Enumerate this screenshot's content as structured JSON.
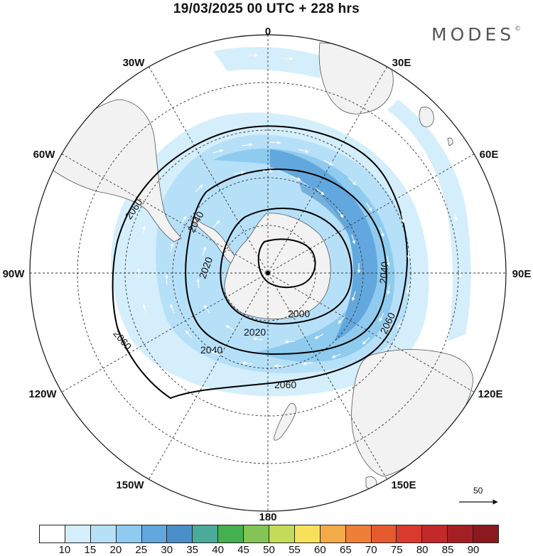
{
  "title": "19/03/2025  00 UTC  + 228 hrs",
  "brand": "MODES",
  "brand_mark": "©",
  "map": {
    "projection": "south-polar-stereographic",
    "longitude_labels": [
      {
        "name": "lon-0",
        "text": "0",
        "lon": 0
      },
      {
        "name": "lon-30e",
        "text": "30E",
        "lon": 30
      },
      {
        "name": "lon-60e",
        "text": "60E",
        "lon": 60
      },
      {
        "name": "lon-90e",
        "text": "90E",
        "lon": 90
      },
      {
        "name": "lon-120e",
        "text": "120E",
        "lon": 120
      },
      {
        "name": "lon-150e",
        "text": "150E",
        "lon": 150
      },
      {
        "name": "lon-180",
        "text": "180",
        "lon": 180
      },
      {
        "name": "lon-150w",
        "text": "150W",
        "lon": -150
      },
      {
        "name": "lon-120w",
        "text": "120W",
        "lon": -120
      },
      {
        "name": "lon-90w",
        "text": "90W",
        "lon": -90
      },
      {
        "name": "lon-60w",
        "text": "60W",
        "lon": -60
      },
      {
        "name": "lon-30w",
        "text": "30W",
        "lon": -30
      }
    ],
    "contour_labels": [
      {
        "name": "contour-label-2060-a",
        "text": "2060"
      },
      {
        "name": "contour-label-2040-a",
        "text": "2040"
      },
      {
        "name": "contour-label-2020-a",
        "text": "2020"
      },
      {
        "name": "contour-label-2000",
        "text": "2000"
      },
      {
        "name": "contour-label-2020-b",
        "text": "2020"
      },
      {
        "name": "contour-label-2040-b",
        "text": "2040"
      },
      {
        "name": "contour-label-2060-b",
        "text": "2060"
      },
      {
        "name": "contour-label-2040-c",
        "text": "2040"
      },
      {
        "name": "contour-label-2060-c",
        "text": "2060"
      },
      {
        "name": "contour-label-2060-d",
        "text": "2060"
      }
    ],
    "reference_vector": {
      "label": "50",
      "value": 50
    },
    "colors": {
      "land": "#f2f2f2",
      "coast": "#555555",
      "grid": "#333333",
      "contour": "#000000",
      "arrows": "#ffffff"
    }
  },
  "colorbar": {
    "ticks": [
      "10",
      "15",
      "20",
      "25",
      "30",
      "35",
      "40",
      "45",
      "50",
      "55",
      "60",
      "65",
      "70",
      "75",
      "80",
      "85",
      "90"
    ],
    "colors": [
      "#ffffff",
      "#d4eefc",
      "#b6e0f8",
      "#8ecbef",
      "#62a8de",
      "#4a8fc9",
      "#4caa9a",
      "#45b04e",
      "#84c454",
      "#c2dc58",
      "#f7e05a",
      "#f3ab4a",
      "#ee7e38",
      "#e65a30",
      "#d93a2c",
      "#c22a2a",
      "#a51e24",
      "#8a1a1e"
    ]
  }
}
